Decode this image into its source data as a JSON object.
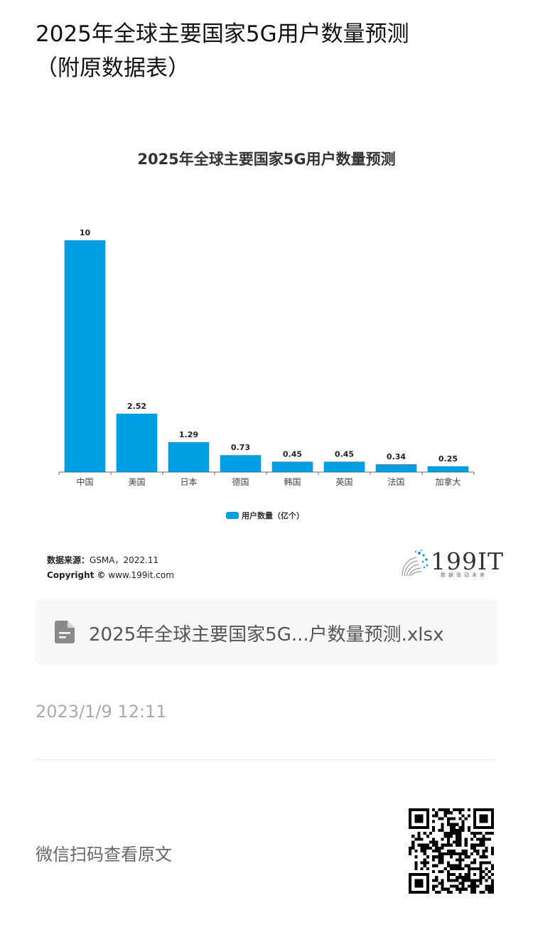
{
  "article": {
    "title_line1": "2025年全球主要国家5G用户数量预测",
    "title_line2": "（附原数据表）"
  },
  "chart_data": {
    "type": "bar",
    "title": "2025年全球主要国家5G用户数量预测",
    "categories": [
      "中国",
      "美国",
      "日本",
      "德国",
      "韩国",
      "英国",
      "法国",
      "加拿大"
    ],
    "series": [
      {
        "name": "用户数量（亿个）",
        "values": [
          10,
          2.52,
          1.29,
          0.73,
          0.45,
          0.45,
          0.34,
          0.25
        ],
        "color": "#009fe3"
      }
    ],
    "data_labels": [
      "10",
      "2.52",
      "1.29",
      "0.73",
      "0.45",
      "0.45",
      "0.34",
      "0.25"
    ],
    "ylim": [
      0,
      10
    ],
    "legend_position": "bottom",
    "grid": false
  },
  "legend": {
    "label": "用户数量（亿个）"
  },
  "source": {
    "label": "数据来源：",
    "value": "GSMA，2022.11",
    "copyright_label": "Copyright ©",
    "copyright_value": "www.199it.com"
  },
  "brand": {
    "name": "199IT",
    "tagline": "数据驱动未来"
  },
  "attachment": {
    "filename": "2025年全球主要国家5G...户数量预测.xlsx",
    "icon": "document-icon"
  },
  "post": {
    "date": "2023/1/9 12:11"
  },
  "footer": {
    "scan_hint": "微信扫码查看原文",
    "qr_icon": "qr-code-icon"
  },
  "colors": {
    "bar": "#009fe3",
    "text_muted": "#aaaaaa"
  }
}
